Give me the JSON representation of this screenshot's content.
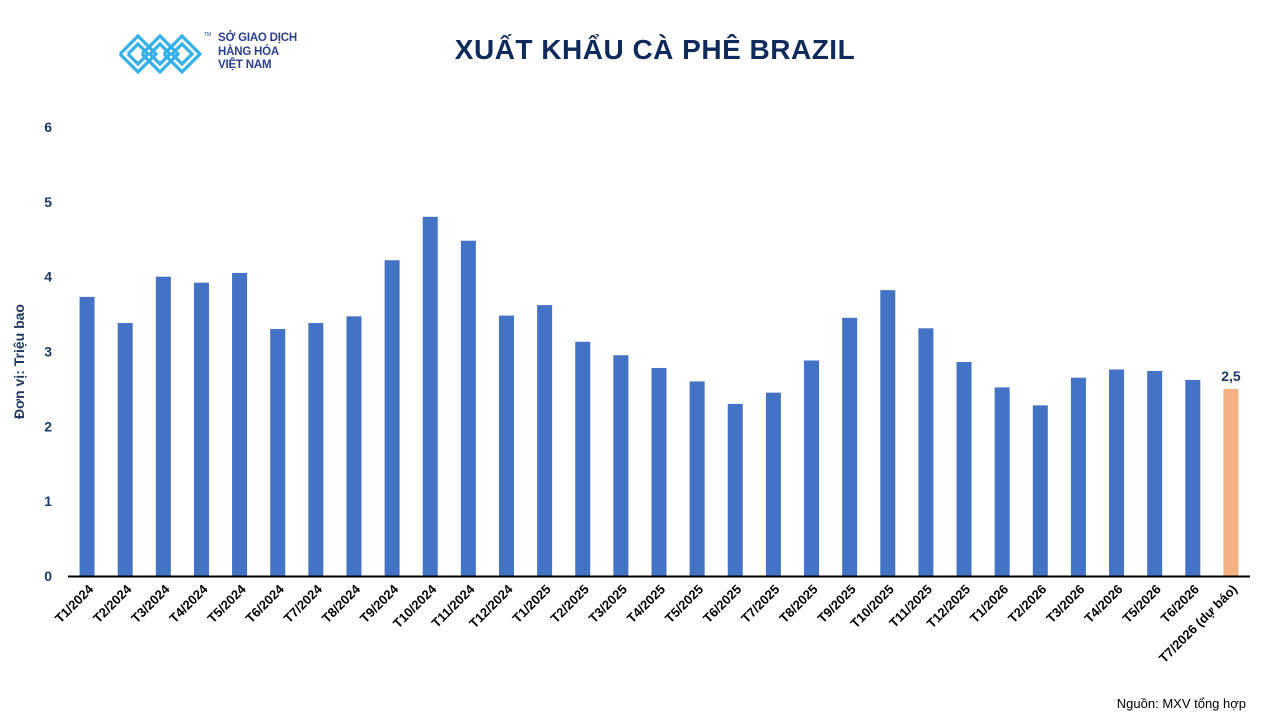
{
  "header": {
    "logo": {
      "line1": "SỞ GIAO DỊCH",
      "line2": "HÀNG HÓA",
      "line3": "VIỆT NAM",
      "tm": "TM",
      "color": "#36b0e8"
    },
    "title": "XUẤT KHẨU CÀ PHÊ BRAZIL"
  },
  "source_note": "Nguồn: MXV tổng hợp",
  "chart_data": {
    "type": "bar",
    "title": "XUẤT KHẨU CÀ PHÊ BRAZIL",
    "xlabel": "",
    "ylabel": "Đơn vị: Triệu bao",
    "ylim": [
      0,
      6
    ],
    "yticks": [
      "0",
      "1",
      "2",
      "3",
      "4",
      "5",
      "6"
    ],
    "grid": false,
    "legend": "none",
    "colors": {
      "actual": "#4472c4",
      "forecast": "#f4b183"
    },
    "categories": [
      "T1/2024",
      "T2/2024",
      "T3/2024",
      "T4/2024",
      "T5/2024",
      "T6/2024",
      "T7/2024",
      "T8/2024",
      "T9/2024",
      "T10/2024",
      "T11/2024",
      "T12/2024",
      "T1/2025",
      "T2/2025",
      "T3/2025",
      "T4/2025",
      "T5/2025",
      "T6/2025",
      "T7/2025",
      "T8/2025",
      "T9/2025",
      "T10/2025",
      "T11/2025",
      "T12/2025",
      "T1/2026",
      "T2/2026",
      "T3/2026",
      "T4/2026",
      "T5/2026",
      "T6/2026",
      "T7/2026 (dự báo)"
    ],
    "values": [
      3.73,
      3.38,
      4.0,
      3.92,
      4.05,
      3.3,
      3.38,
      3.47,
      4.22,
      4.8,
      4.48,
      3.48,
      3.62,
      3.13,
      2.95,
      2.78,
      2.6,
      2.3,
      2.45,
      2.88,
      3.45,
      3.82,
      3.31,
      2.86,
      2.52,
      2.28,
      2.65,
      2.76,
      2.74,
      2.62,
      2.5
    ],
    "forecast_index": 30,
    "data_labels": {
      "30": "2,5"
    }
  }
}
